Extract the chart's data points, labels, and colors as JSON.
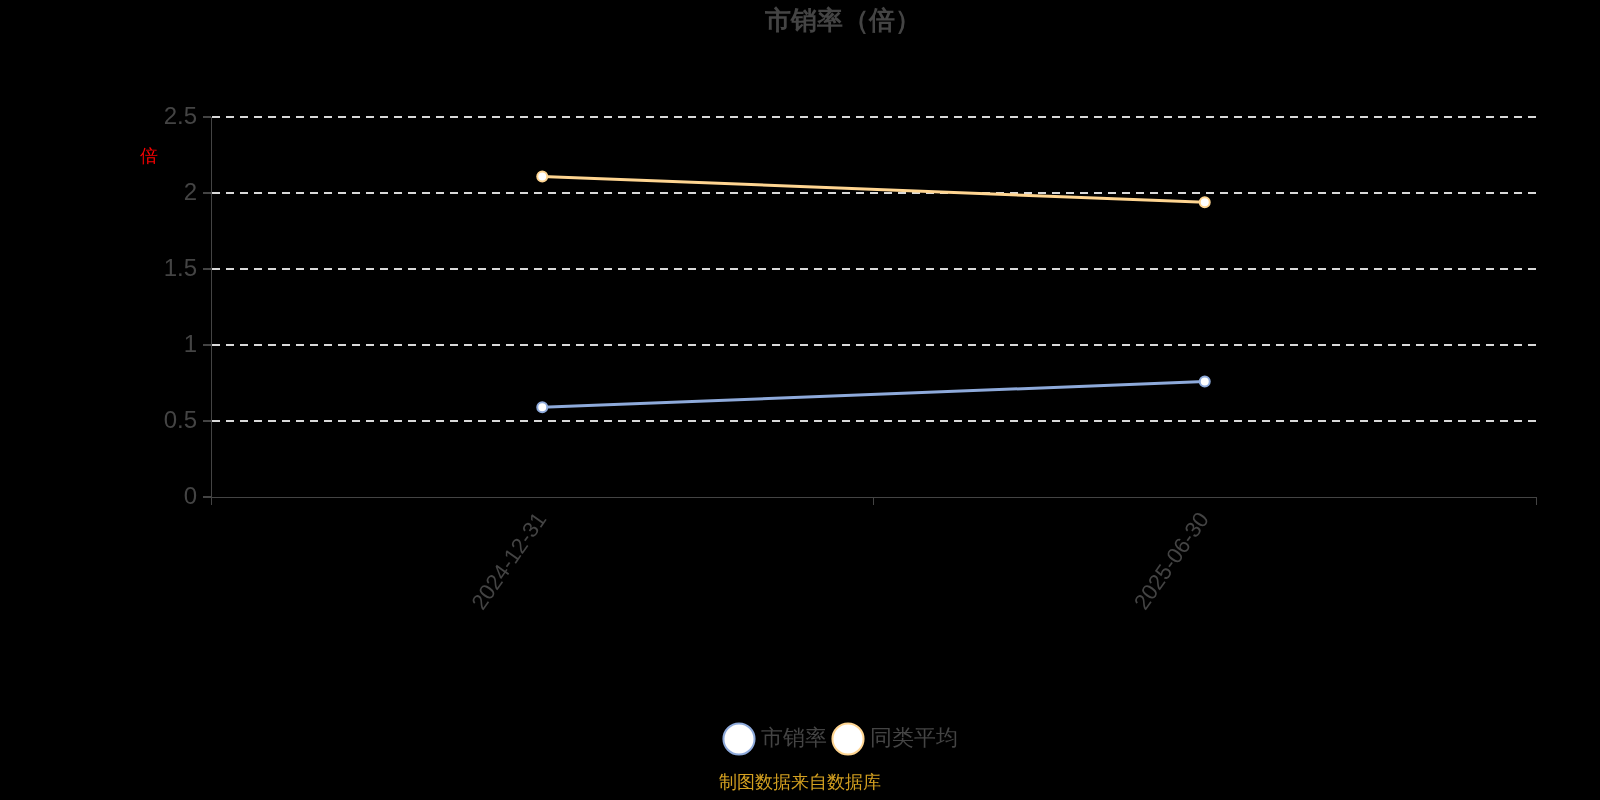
{
  "chart_data": {
    "type": "line",
    "title": "市销率（倍）",
    "ylabel": "倍",
    "categories": [
      "2024-12-31",
      "2025-06-30"
    ],
    "series": [
      {
        "name": "市销率",
        "color": "#8eaadb",
        "values": [
          0.59,
          0.76
        ]
      },
      {
        "name": "同类平均",
        "color": "#ffd591",
        "values": [
          2.11,
          1.94
        ]
      }
    ],
    "ylim": [
      0,
      2.5
    ],
    "yticks": [
      0,
      0.5,
      1,
      1.5,
      2,
      2.5
    ],
    "grid": "y",
    "legend": "bottom",
    "marker": "circle",
    "line_style": "solid",
    "annotations": [
      "制图数据来自数据库"
    ]
  }
}
